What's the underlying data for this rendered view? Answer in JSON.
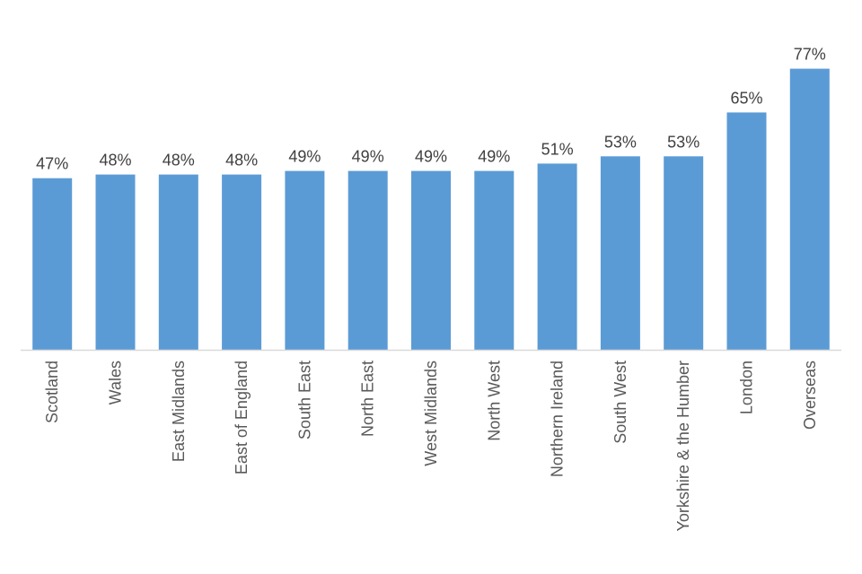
{
  "chart_data": {
    "type": "bar",
    "title": "",
    "xlabel": "",
    "ylabel": "",
    "categories": [
      "Scotland",
      "Wales",
      "East Midlands",
      "East of England",
      "South East",
      "North East",
      "West Midlands",
      "North West",
      "Northern Ireland",
      "South West",
      "Yorkshire & the Humber",
      "London",
      "Overseas"
    ],
    "values": [
      47,
      48,
      48,
      48,
      49,
      49,
      49,
      49,
      51,
      53,
      53,
      65,
      77
    ],
    "labels": [
      "47%",
      "48%",
      "48%",
      "48%",
      "49%",
      "49%",
      "49%",
      "49%",
      "51%",
      "53%",
      "53%",
      "65%",
      "77%"
    ],
    "ylim": [
      0,
      80
    ],
    "y_axis_visible": false,
    "grid": false,
    "legend": "none",
    "bar_color": "#5B9BD5",
    "axis_color": "#D9D9D9"
  }
}
